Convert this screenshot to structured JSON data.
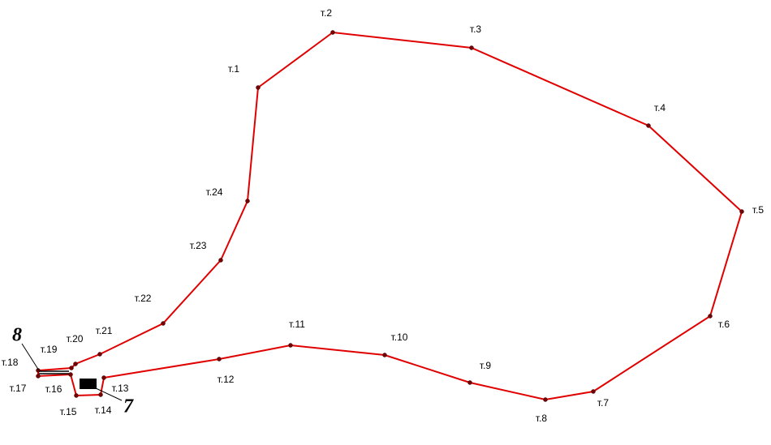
{
  "nodes": [
    {
      "label": "т.1"
    },
    {
      "label": "т.2"
    },
    {
      "label": "т.3"
    },
    {
      "label": "т.4"
    },
    {
      "label": "т.5"
    },
    {
      "label": "т.6"
    },
    {
      "label": "т.7"
    },
    {
      "label": "т.8"
    },
    {
      "label": "т.9"
    },
    {
      "label": "т.10"
    },
    {
      "label": "т.11"
    },
    {
      "label": "т.12"
    },
    {
      "label": "т.13"
    },
    {
      "label": "т.14"
    },
    {
      "label": "т.15"
    },
    {
      "label": "т.16"
    },
    {
      "label": "т.17"
    },
    {
      "label": "т.18"
    },
    {
      "label": "т.19"
    },
    {
      "label": "т.20"
    },
    {
      "label": "т.21"
    },
    {
      "label": "т.22"
    },
    {
      "label": "т.23"
    },
    {
      "label": "т.24"
    }
  ],
  "markers": [
    {
      "label": "8"
    },
    {
      "label": "7"
    }
  ]
}
